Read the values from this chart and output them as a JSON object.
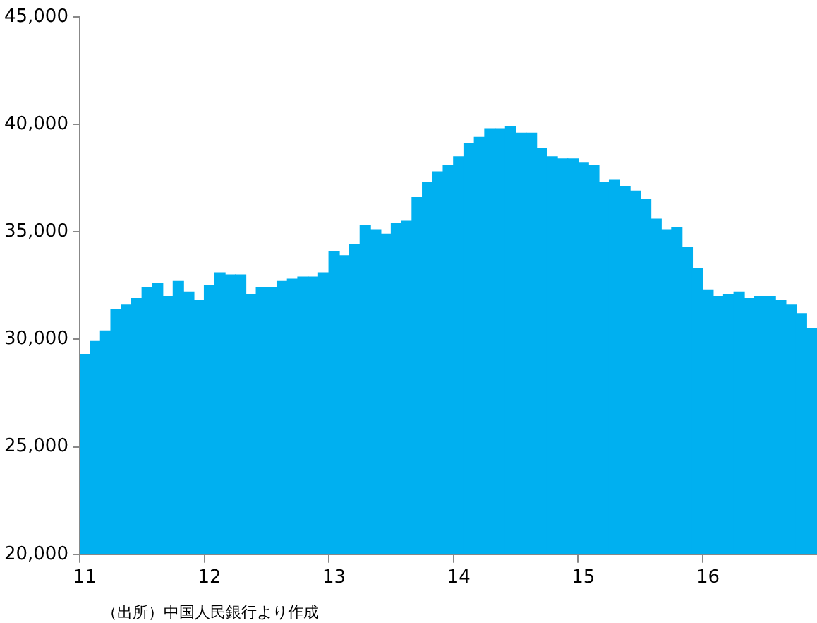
{
  "chart_data": {
    "type": "bar",
    "categories": [
      "11",
      null,
      null,
      null,
      null,
      null,
      null,
      null,
      null,
      null,
      null,
      null,
      "12",
      null,
      null,
      null,
      null,
      null,
      null,
      null,
      null,
      null,
      null,
      null,
      "13",
      null,
      null,
      null,
      null,
      null,
      null,
      null,
      null,
      null,
      null,
      null,
      "14",
      null,
      null,
      null,
      null,
      null,
      null,
      null,
      null,
      null,
      null,
      null,
      "15",
      null,
      null,
      null,
      null,
      null,
      null,
      null,
      null,
      null,
      null,
      null,
      "16",
      null,
      null,
      null,
      null,
      null,
      null,
      null,
      null,
      null,
      null
    ],
    "values": [
      29300,
      29900,
      30400,
      31400,
      31600,
      31900,
      32400,
      32600,
      32000,
      32700,
      32200,
      31800,
      32500,
      33100,
      33000,
      33000,
      32100,
      32400,
      32400,
      32700,
      32800,
      32900,
      32900,
      33100,
      34100,
      33900,
      34400,
      35300,
      35100,
      34900,
      35400,
      35500,
      36600,
      37300,
      37800,
      38100,
      38500,
      39100,
      39400,
      39800,
      39800,
      39900,
      39600,
      39600,
      38900,
      38500,
      38400,
      38400,
      38200,
      38100,
      37300,
      37400,
      37100,
      36900,
      36500,
      35600,
      35100,
      35200,
      34300,
      33300,
      32300,
      32000,
      32100,
      32200,
      31900,
      32000,
      32000,
      31800,
      31600,
      31200,
      30500
    ],
    "color": "#00b0f0",
    "ylim": [
      20000,
      45000
    ],
    "yticks": [
      {
        "value": 20000,
        "label": "20,000"
      },
      {
        "value": 25000,
        "label": "25,000"
      },
      {
        "value": 30000,
        "label": "30,000"
      },
      {
        "value": 35000,
        "label": "35,000"
      },
      {
        "value": 40000,
        "label": "40,000"
      },
      {
        "value": 45000,
        "label": "45,000"
      }
    ],
    "grid": false,
    "legend": false,
    "annotations": [
      "（出所）中国人民銀行より作成"
    ]
  }
}
